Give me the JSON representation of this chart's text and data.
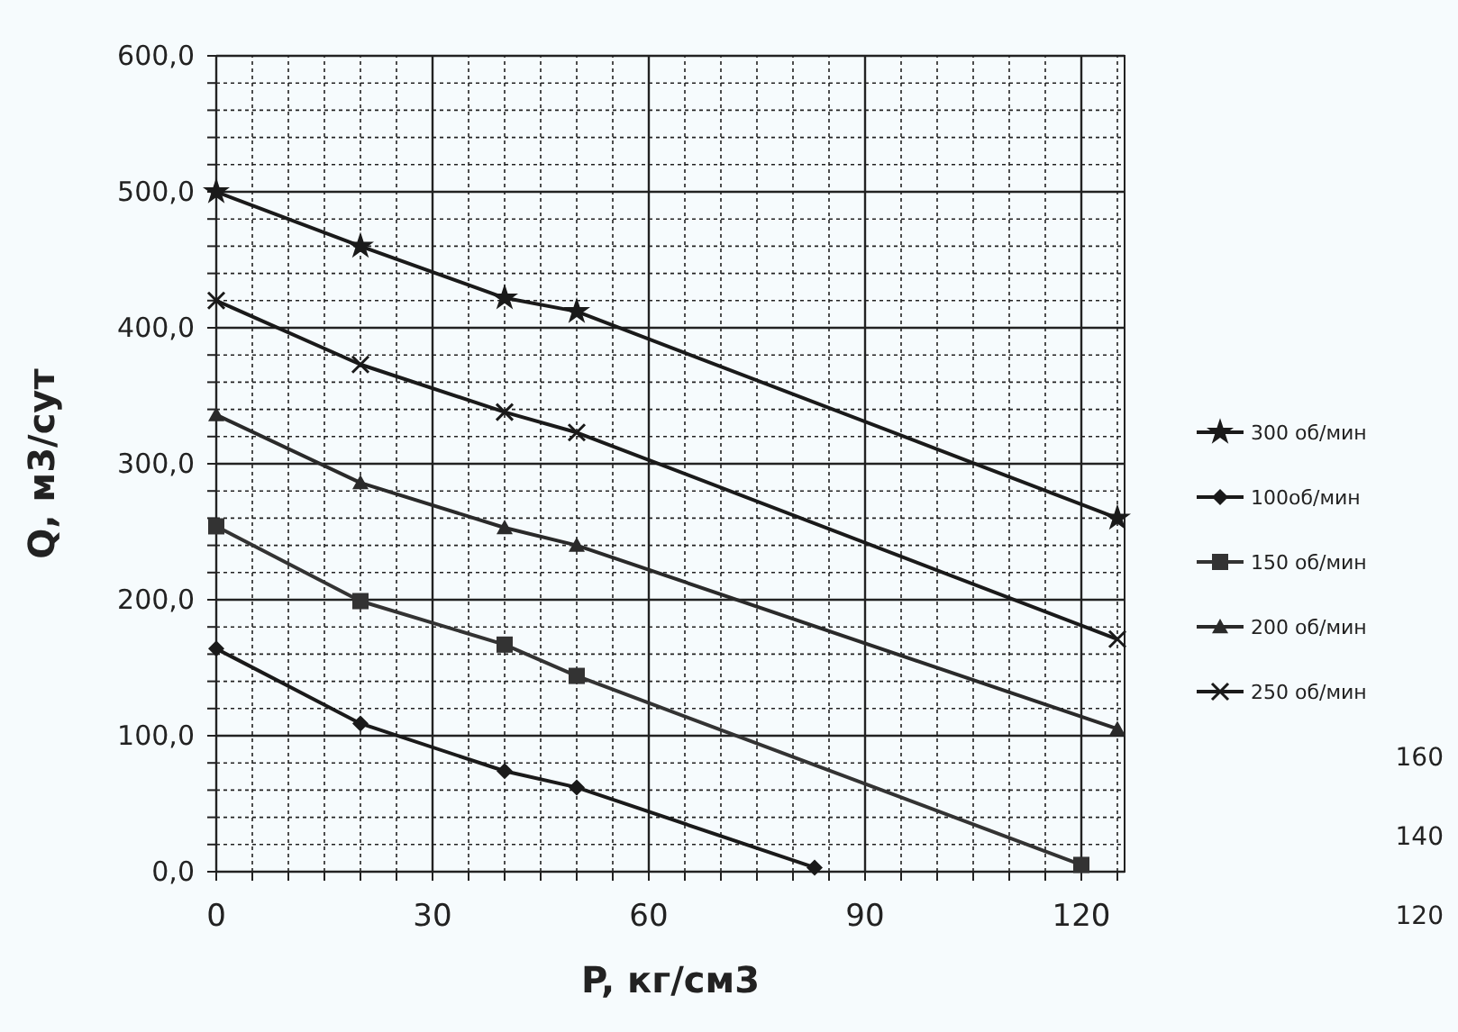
{
  "chart_data": {
    "type": "line",
    "xlabel": "P, кг/см3",
    "ylabel": "Q, м3/сут",
    "xlim": [
      0,
      126
    ],
    "ylim": [
      0,
      600
    ],
    "xticks": [
      0,
      {
        "value": 5,
        "label": null
      },
      {
        "value": 10,
        "label": null
      },
      {
        "value": 15,
        "label": null
      },
      {
        "value": 20,
        "label": null
      },
      {
        "value": 25,
        "label": null
      },
      30,
      {
        "value": 35,
        "label": null
      },
      {
        "value": 40,
        "label": null
      },
      {
        "value": 45,
        "label": null
      },
      {
        "value": 50,
        "label": null
      },
      {
        "value": 55,
        "label": null
      },
      60,
      {
        "value": 65,
        "label": null
      },
      {
        "value": 70,
        "label": null
      },
      {
        "value": 75,
        "label": null
      },
      {
        "value": 80,
        "label": null
      },
      {
        "value": 85,
        "label": null
      },
      90,
      {
        "value": 95,
        "label": null
      },
      {
        "value": 100,
        "label": null
      },
      {
        "value": 105,
        "label": null
      },
      {
        "value": 110,
        "label": null
      },
      {
        "value": 115,
        "label": null
      },
      120,
      {
        "value": 125,
        "label": null
      }
    ],
    "yticks": [
      {
        "value": 0,
        "label": "0,0"
      },
      {
        "value": 20,
        "label": null
      },
      {
        "value": 40,
        "label": null
      },
      {
        "value": 60,
        "label": null
      },
      {
        "value": 80,
        "label": null
      },
      {
        "value": 100,
        "label": "100,0"
      },
      {
        "value": 120,
        "label": null
      },
      {
        "value": 140,
        "label": null
      },
      {
        "value": 160,
        "label": null
      },
      {
        "value": 180,
        "label": null
      },
      {
        "value": 200,
        "label": "200,0"
      },
      {
        "value": 220,
        "label": null
      },
      {
        "value": 240,
        "label": null
      },
      {
        "value": 260,
        "label": null
      },
      {
        "value": 280,
        "label": null
      },
      {
        "value": 300,
        "label": "300,0"
      },
      {
        "value": 320,
        "label": null
      },
      {
        "value": 340,
        "label": null
      },
      {
        "value": 360,
        "label": null
      },
      {
        "value": 380,
        "label": null
      },
      {
        "value": 400,
        "label": "400,0"
      },
      {
        "value": 420,
        "label": null
      },
      {
        "value": 440,
        "label": null
      },
      {
        "value": 460,
        "label": null
      },
      {
        "value": 480,
        "label": null
      },
      {
        "value": 500,
        "label": "500,0"
      },
      {
        "value": 520,
        "label": null
      },
      {
        "value": 540,
        "label": null
      },
      {
        "value": 560,
        "label": null
      },
      {
        "value": 580,
        "label": null
      },
      {
        "value": 600,
        "label": "600,0"
      }
    ],
    "grid": true,
    "legend": "right",
    "line_style": "solid",
    "series": [
      {
        "name": "300 об/мин",
        "color": "#1a1a1a",
        "marker": "star",
        "x": [
          0,
          20,
          40,
          50,
          125
        ],
        "values": [
          500,
          460,
          422,
          412,
          260
        ]
      },
      {
        "name": "100об/мин",
        "color": "#1a1a1a",
        "marker": "diamond",
        "x": [
          0,
          20,
          40,
          50,
          83
        ],
        "values": [
          164,
          109,
          74,
          62,
          3
        ]
      },
      {
        "name": "150 об/мин",
        "color": "#333333",
        "marker": "square",
        "x": [
          0,
          20,
          40,
          50,
          120
        ],
        "values": [
          254,
          199,
          167,
          144,
          5
        ]
      },
      {
        "name": "200 об/мин",
        "color": "#2a2a2a",
        "marker": "triangle",
        "x": [
          0,
          20,
          40,
          50,
          125
        ],
        "values": [
          336,
          286,
          253,
          240,
          105
        ]
      },
      {
        "name": "250 об/мин",
        "color": "#1a1a1a",
        "marker": "cross",
        "x": [
          0,
          20,
          40,
          50,
          125
        ],
        "values": [
          420,
          373,
          338,
          323,
          171
        ]
      }
    ],
    "annotations": [
      "160",
      "140",
      "120"
    ]
  }
}
